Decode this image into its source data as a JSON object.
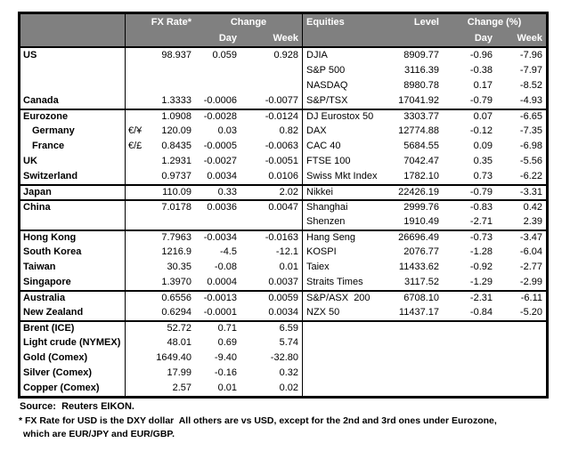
{
  "colors": {
    "header_bg": "#808080",
    "header_text": "#ffffff",
    "border": "#000000",
    "text": "#000000"
  },
  "header": {
    "fx_rate": "FX Rate*",
    "change": "Change",
    "day": "Day",
    "week": "Week",
    "equities": "Equities",
    "level": "Level",
    "change_pct": "Change (%)",
    "day2": "Day",
    "week2": "Week"
  },
  "rows": [
    {
      "name": "US",
      "pair": "",
      "fx": "98.937",
      "day": "0.059",
      "week": "0.928",
      "eq": "DJIA",
      "level": "8909.77",
      "eqday": "-0.96",
      "eqweek": "-7.96"
    },
    {
      "name": "",
      "pair": "",
      "fx": "",
      "day": "",
      "week": "",
      "eq": "S&P 500",
      "level": "3116.39",
      "eqday": "-0.38",
      "eqweek": "-7.97"
    },
    {
      "name": "",
      "pair": "",
      "fx": "",
      "day": "",
      "week": "",
      "eq": "NASDAQ",
      "level": "8980.78",
      "eqday": "0.17",
      "eqweek": "-8.52"
    },
    {
      "name": "Canada",
      "pair": "",
      "fx": "1.3333",
      "day": "-0.0006",
      "week": "-0.0077",
      "eq": "S&P/TSX",
      "level": "17041.92",
      "eqday": "-0.79",
      "eqweek": "-4.93"
    },
    {
      "sep": true,
      "name": "Eurozone",
      "pair": "",
      "fx": "1.0908",
      "day": "-0.0028",
      "week": "-0.0124",
      "eq": "DJ Eurostox 50",
      "level": "3303.77",
      "eqday": "0.07",
      "eqweek": "-6.65"
    },
    {
      "indent": true,
      "name": "Germany",
      "pair": "€/¥",
      "fx": "120.09",
      "day": "0.03",
      "week": "0.82",
      "eq": "DAX",
      "level": "12774.88",
      "eqday": "-0.12",
      "eqweek": "-7.35"
    },
    {
      "indent": true,
      "name": "France",
      "pair": "€/£",
      "fx": "0.8435",
      "day": "-0.0005",
      "week": "-0.0063",
      "eq": "CAC 40",
      "level": "5684.55",
      "eqday": "0.09",
      "eqweek": "-6.98"
    },
    {
      "name": "UK",
      "pair": "",
      "fx": "1.2931",
      "day": "-0.0027",
      "week": "-0.0051",
      "eq": "FTSE 100",
      "level": "7042.47",
      "eqday": "0.35",
      "eqweek": "-5.56"
    },
    {
      "name": "Switzerland",
      "pair": "",
      "fx": "0.9737",
      "day": "0.0034",
      "week": "0.0106",
      "eq": "Swiss Mkt Index",
      "level": "1782.10",
      "eqday": "0.73",
      "eqweek": "-6.22"
    },
    {
      "sep": true,
      "name": "Japan",
      "pair": "",
      "fx": "110.09",
      "day": "0.33",
      "week": "2.02",
      "eq": "Nikkei",
      "level": "22426.19",
      "eqday": "-0.79",
      "eqweek": "-3.31"
    },
    {
      "sep": true,
      "name": "China",
      "pair": "",
      "fx": "7.0178",
      "day": "0.0036",
      "week": "0.0047",
      "eq": "Shanghai",
      "level": "2999.76",
      "eqday": "-0.83",
      "eqweek": "0.42"
    },
    {
      "name": "",
      "pair": "",
      "fx": "",
      "day": "",
      "week": "",
      "eq": "Shenzen",
      "level": "1910.49",
      "eqday": "-2.71",
      "eqweek": "2.39"
    },
    {
      "sep": true,
      "name": "Hong Kong",
      "pair": "",
      "fx": "7.7963",
      "day": "-0.0034",
      "week": "-0.0163",
      "eq": "Hang Seng",
      "level": "26696.49",
      "eqday": "-0.73",
      "eqweek": "-3.47"
    },
    {
      "name": "South Korea",
      "pair": "",
      "fx": "1216.9",
      "day": "-4.5",
      "week": "-12.1",
      "eq": "KOSPI",
      "level": "2076.77",
      "eqday": "-1.28",
      "eqweek": "-6.04"
    },
    {
      "name": "Taiwan",
      "pair": "",
      "fx": "30.35",
      "day": "-0.08",
      "week": "0.01",
      "eq": "Taiex",
      "level": "11433.62",
      "eqday": "-0.92",
      "eqweek": "-2.77"
    },
    {
      "name": "Singapore",
      "pair": "",
      "fx": "1.3970",
      "day": "0.0004",
      "week": "0.0037",
      "eq": "Straits Times",
      "level": "3117.52",
      "eqday": "-1.29",
      "eqweek": "-2.99"
    },
    {
      "sep": true,
      "name": "Australia",
      "pair": "",
      "fx": "0.6556",
      "day": "-0.0013",
      "week": "0.0059",
      "eq": "S&P/ASX  200",
      "level": "6708.10",
      "eqday": "-2.31",
      "eqweek": "-6.11"
    },
    {
      "name": "New Zealand",
      "pair": "",
      "fx": "0.6294",
      "day": "-0.0001",
      "week": "0.0034",
      "eq": "NZX 50",
      "level": "11437.17",
      "eqday": "-0.84",
      "eqweek": "-5.20"
    },
    {
      "sep": true,
      "name": "Brent (ICE)",
      "pair": "",
      "fx": "52.72",
      "day": "0.71",
      "week": "6.59",
      "eq": "",
      "level": "",
      "eqday": "",
      "eqweek": ""
    },
    {
      "name": "Light crude (NYMEX)",
      "pair": "",
      "fx": "48.01",
      "day": "0.69",
      "week": "5.74",
      "eq": "",
      "level": "",
      "eqday": "",
      "eqweek": ""
    },
    {
      "name": "Gold (Comex)",
      "pair": "",
      "fx": "1649.40",
      "day": "-9.40",
      "week": "-32.80",
      "eq": "",
      "level": "",
      "eqday": "",
      "eqweek": ""
    },
    {
      "name": "Silver (Comex)",
      "pair": "",
      "fx": "17.99",
      "day": "-0.16",
      "week": "0.32",
      "eq": "",
      "level": "",
      "eqday": "",
      "eqweek": ""
    },
    {
      "name": "Copper (Comex)",
      "pair": "",
      "fx": "2.57",
      "day": "0.01",
      "week": "0.02",
      "eq": "",
      "level": "",
      "eqday": "",
      "eqweek": ""
    }
  ],
  "footer": {
    "source": "Source:  Reuters EIKON.",
    "footnote1": "* FX Rate for USD is the DXY dollar  All others are vs USD, except for the 2nd and 3rd ones under Eurozone,",
    "footnote2": "which are EUR/JPY and EUR/GBP."
  }
}
